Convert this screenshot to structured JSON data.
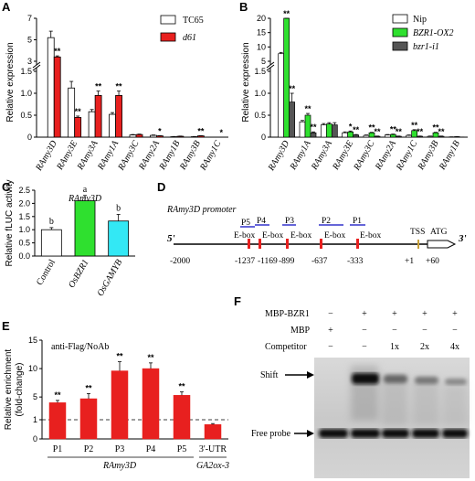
{
  "colors": {
    "red": "#e8201f",
    "green": "#2fe02f",
    "grey": "#555555",
    "cyan": "#33e8f5",
    "white": "#ffffff",
    "black": "#000000",
    "blue": "#3333cc"
  },
  "panels": {
    "A": "A",
    "B": "B",
    "C": "C",
    "D": "D",
    "E": "E",
    "F": "F"
  },
  "chart_data": [
    {
      "id": "A",
      "type": "bar",
      "ylabel": "Relative expression",
      "categories": [
        "RAmy3D",
        "RAmy3E",
        "RAmy3A",
        "RAmy1A",
        "RAmy3C",
        "RAmy2A",
        "RAmy1B",
        "RAmy3B",
        "RAmy1C"
      ],
      "axis_break": true,
      "yticks_bottom": [
        "0",
        "0.5",
        "1.0",
        "1.5"
      ],
      "yticks_top": [
        "3",
        "5",
        "7"
      ],
      "series": [
        {
          "name": "TC65",
          "color": "#ffffff",
          "values": [
            5.2,
            1.12,
            0.58,
            0.52,
            0.05,
            0.04,
            0.01,
            0.01,
            0.0
          ],
          "err": [
            0.6,
            0.15,
            0.05,
            0.04,
            0.01,
            0.01,
            0.005,
            0.005,
            0.0
          ]
        },
        {
          "name": "d61",
          "color": "#e8201f",
          "values": [
            3.4,
            0.45,
            0.95,
            0.95,
            0.06,
            0.03,
            0.02,
            0.03,
            0.0
          ],
          "err": [
            0.1,
            0.03,
            0.1,
            0.1,
            0.01,
            0.005,
            0.005,
            0.005,
            0.0
          ]
        }
      ],
      "significance": [
        "**",
        "**",
        "**",
        "**",
        "",
        "*",
        "",
        "**",
        "*"
      ]
    },
    {
      "id": "B",
      "type": "bar",
      "ylabel": "Relative expression",
      "categories": [
        "RAmy3D",
        "RAmy1A",
        "RAmy3A",
        "RAmy3E",
        "RAmy3C",
        "RAmy2A",
        "RAmy1C",
        "RAmy3B",
        "RAmy1B"
      ],
      "axis_break": true,
      "yticks_bottom": [
        "0",
        "0.5",
        "1.0",
        "1.5"
      ],
      "yticks_top": [
        "5",
        "10",
        "15",
        "20"
      ],
      "series": [
        {
          "name": "Nip",
          "color": "#ffffff",
          "values": [
            6.0,
            0.35,
            0.28,
            0.1,
            0.04,
            0.05,
            0.04,
            0.02,
            0.005
          ],
          "err": [
            0.5,
            0.03,
            0.03,
            0.02,
            0.01,
            0.01,
            0.01,
            0.005,
            0.002
          ]
        },
        {
          "name": "BZR1-OX2",
          "color": "#2fe02f",
          "values": [
            20.0,
            0.5,
            0.3,
            0.12,
            0.1,
            0.06,
            0.15,
            0.1,
            0.01
          ],
          "err": [
            1.0,
            0.04,
            0.03,
            0.02,
            0.01,
            0.01,
            0.02,
            0.01,
            0.003
          ]
        },
        {
          "name": "bzr1-i1",
          "color": "#555555",
          "values": [
            0.8,
            0.1,
            0.28,
            0.05,
            0.02,
            0.02,
            0.02,
            0.02,
            0.002
          ],
          "err": [
            0.2,
            0.02,
            0.05,
            0.01,
            0.005,
            0.005,
            0.005,
            0.005,
            0.001
          ]
        }
      ],
      "significance": [
        [
          "**",
          "**"
        ],
        [
          "**",
          "**"
        ],
        [
          "",
          ""
        ],
        [
          "*",
          "**"
        ],
        [
          "**",
          "**"
        ],
        [
          "**",
          "**"
        ],
        [
          "**",
          "**"
        ],
        [
          "**",
          "**"
        ],
        [
          "",
          ""
        ]
      ]
    },
    {
      "id": "C",
      "type": "bar",
      "title": "RAmy3D",
      "ylabel": "Relative fLUC activity",
      "categories": [
        "Control",
        "OsBZR1",
        "OsGAMYB"
      ],
      "ylim": [
        0,
        2.5
      ],
      "yticks": [
        "0.0",
        "0.5",
        "1.0",
        "1.5",
        "2.0",
        "2.5"
      ],
      "values": [
        1.0,
        2.1,
        1.33
      ],
      "err": [
        0.08,
        0.2,
        0.25
      ],
      "colors": [
        "#ffffff",
        "#2fe02f",
        "#33e8f5"
      ],
      "letters": [
        "b",
        "a",
        "b"
      ]
    },
    {
      "id": "E",
      "type": "bar",
      "title": "anti-Flag/NoAb",
      "ylabel": "Relative enrichment",
      "ylabel2": "(fold-change)",
      "categories": [
        "P1",
        "P2",
        "P3",
        "P4",
        "P5",
        "3'-UTR"
      ],
      "group_labels": [
        "RAmy3D",
        "GA2ox-3"
      ],
      "ylim": [
        0,
        12.5
      ],
      "yticks": [
        "0",
        "1",
        "5",
        "10",
        "15"
      ],
      "values": [
        4.0,
        4.7,
        9.6,
        10.0,
        5.3,
        0.75
      ],
      "err": [
        0.4,
        0.9,
        1.6,
        1.0,
        0.6,
        0.05
      ],
      "significance": [
        "**",
        "**",
        "**",
        "**",
        "**",
        ""
      ],
      "baseline": 1
    }
  ],
  "promoter": {
    "title": "RAmy3D promoter",
    "five": "5'",
    "three": "3'",
    "pos": [
      "-2000",
      "-1237",
      "-1169",
      "-899",
      "-637",
      "-333",
      "+1",
      "+60"
    ],
    "boxes": [
      "E-box",
      "E-box",
      "E-box",
      "E-box",
      "E-box"
    ],
    "primers": [
      "P5",
      "P4",
      "P3",
      "P2",
      "P1"
    ],
    "tss": "TSS",
    "atg": "ATG"
  },
  "emsa": {
    "rows": [
      "MBP-BZR1",
      "MBP",
      "Competitor"
    ],
    "mbp_bzr1": [
      "−",
      "+",
      "+",
      "+",
      "+"
    ],
    "mbp": [
      "+",
      "−",
      "−",
      "−",
      "−"
    ],
    "competitor": [
      "−",
      "−",
      "1x",
      "2x",
      "4x"
    ],
    "shift": "Shift",
    "free": "Free probe"
  }
}
